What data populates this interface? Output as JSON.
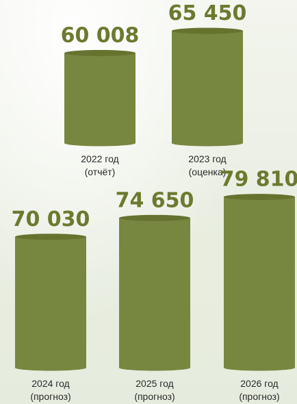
{
  "chart_data": {
    "type": "bar",
    "title": "",
    "xlabel": "",
    "ylabel": "",
    "categories": [
      "2022 год (отчёт)",
      "2023 год (оценка)",
      "2024 год (прогноз)",
      "2025 год (прогноз)",
      "2026 год (прогноз)"
    ],
    "values": [
      60008,
      65450,
      70030,
      74650,
      79810
    ],
    "value_labels": [
      "60 008",
      "65 450",
      "70 030",
      "74 650",
      "79 810"
    ],
    "category_lines": [
      [
        "2022 год",
        "(отчёт)"
      ],
      [
        "2023 год",
        "(оценка)"
      ],
      [
        "2024 год",
        "(прогноз)"
      ],
      [
        "2025 год",
        "(прогноз)"
      ],
      [
        "2026 год",
        "(прогноз)"
      ]
    ],
    "bar_style": "cylinder",
    "grid": false,
    "legend": "none"
  },
  "colors": {
    "bar_body": "#788740",
    "bar_top": "#65732f",
    "value_text": "#6b7a30",
    "category_text": "#2a2a2a"
  }
}
